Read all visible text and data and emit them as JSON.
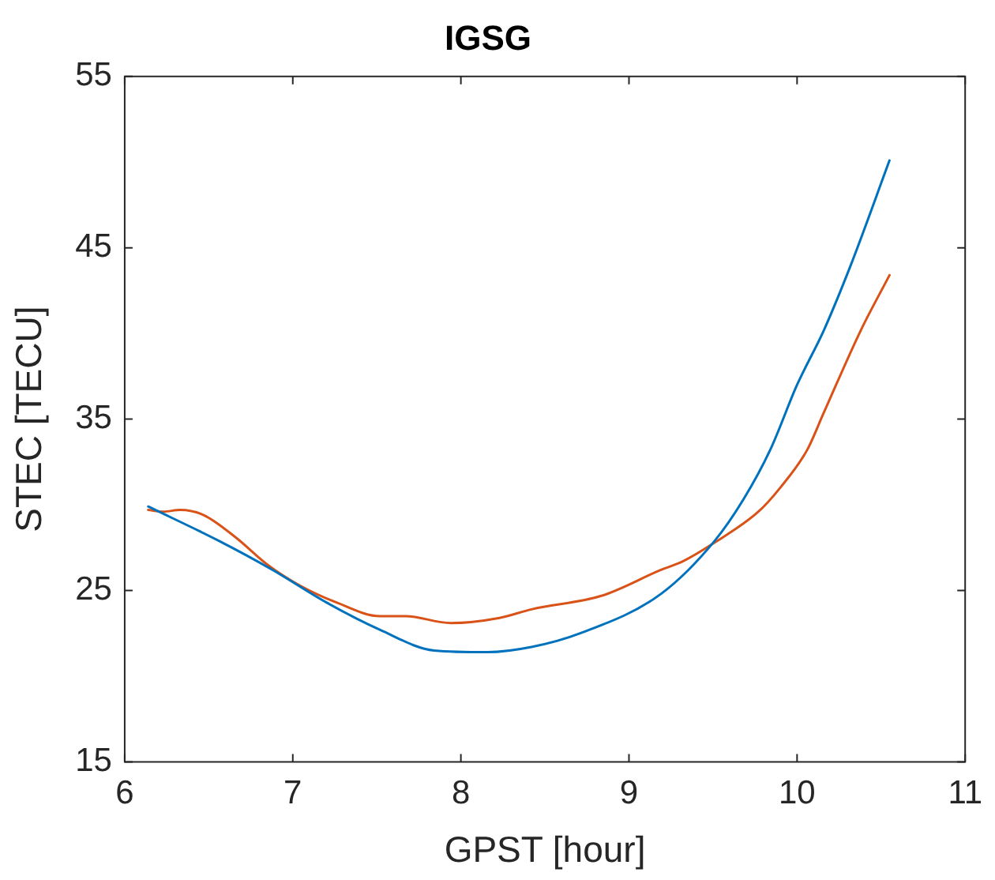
{
  "chart_data": {
    "type": "line",
    "title": "IGSG",
    "xlabel": "GPST [hour]",
    "ylabel": "STEC [TECU]",
    "xlim": [
      6,
      11
    ],
    "xticks": [
      6,
      7,
      8,
      9,
      10,
      11
    ],
    "ylim": [
      15,
      55
    ],
    "yticks": [
      15,
      25,
      35,
      45,
      55
    ],
    "grid": false,
    "legend": false,
    "marker": "none",
    "line_style": "solid",
    "series": [
      {
        "color": "#0072bd",
        "x": [
          6.14,
          6.56,
          6.88,
          7.2,
          7.52,
          7.84,
          8.16,
          8.42,
          8.71,
          9.19,
          9.51,
          9.68,
          9.84,
          10.0,
          10.16,
          10.32,
          10.55
        ],
        "values": [
          29.9,
          27.9,
          26.2,
          24.3,
          22.7,
          21.5,
          21.4,
          21.7,
          22.5,
          24.8,
          27.9,
          30.3,
          33.2,
          37.0,
          40.2,
          44.0,
          50.1
        ]
      },
      {
        "color": "#d95319",
        "x": [
          6.14,
          6.23,
          6.33,
          6.47,
          6.66,
          6.85,
          7.04,
          7.26,
          7.52,
          7.67,
          7.94,
          8.23,
          8.42,
          8.84,
          9.19,
          9.32,
          9.51,
          9.77,
          9.9,
          10.06,
          10.16,
          10.38,
          10.55
        ],
        "values": [
          29.7,
          29.6,
          29.7,
          29.4,
          28.1,
          26.5,
          25.3,
          24.3,
          23.5,
          23.5,
          23.1,
          23.4,
          23.9,
          24.7,
          26.2,
          26.7,
          27.8,
          29.6,
          31.0,
          33.2,
          35.4,
          40.2,
          43.4
        ]
      }
    ]
  }
}
